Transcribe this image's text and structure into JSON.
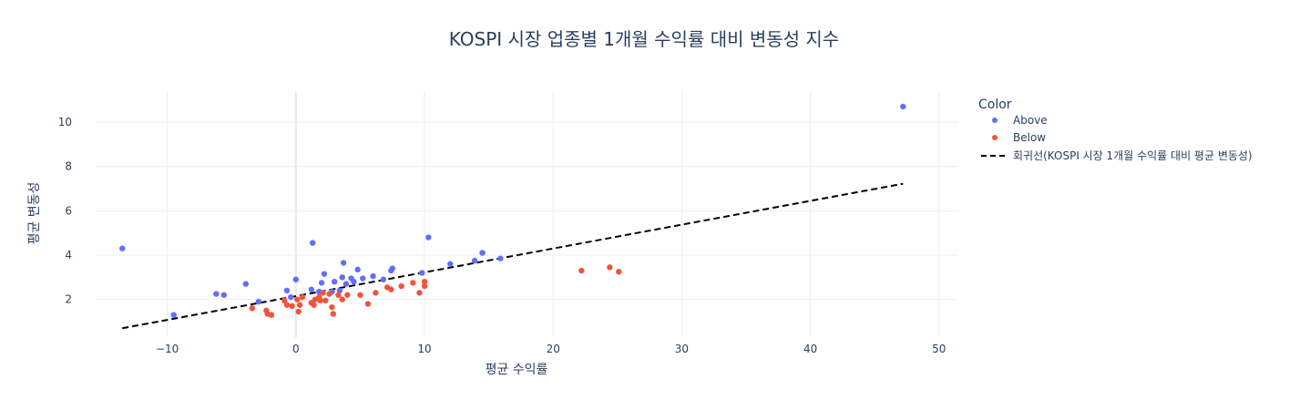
{
  "chart_data": {
    "type": "scatter",
    "title": "KOSPI 시장 업종별 1개월 수익률 대비 변동성 지수",
    "xlabel": "평균 수익률",
    "ylabel": "평균 변동성",
    "xlim": [
      -15.5,
      51.5
    ],
    "ylim": [
      0.3,
      11.4
    ],
    "xticks": [
      -10,
      0,
      10,
      20,
      30,
      40,
      50
    ],
    "xtick_labels": [
      "−10",
      "0",
      "10",
      "20",
      "30",
      "40",
      "50"
    ],
    "yticks": [
      2,
      4,
      6,
      8,
      10
    ],
    "ytick_labels": [
      "2",
      "4",
      "6",
      "8",
      "10"
    ],
    "grid": true,
    "legend": {
      "title": "Color",
      "placement": "right"
    },
    "series": [
      {
        "name": "Above",
        "color": "#636efa",
        "points": [
          [
            -13.5,
            4.3
          ],
          [
            -9.5,
            1.3
          ],
          [
            -6.2,
            2.25
          ],
          [
            -5.6,
            2.2
          ],
          [
            -3.9,
            2.7
          ],
          [
            -2.9,
            1.9
          ],
          [
            -0.7,
            2.4
          ],
          [
            -0.4,
            2.1
          ],
          [
            0.0,
            2.9
          ],
          [
            1.2,
            2.45
          ],
          [
            1.3,
            4.55
          ],
          [
            1.8,
            2.35
          ],
          [
            2.0,
            2.75
          ],
          [
            2.2,
            3.15
          ],
          [
            2.8,
            2.35
          ],
          [
            3.0,
            2.8
          ],
          [
            3.4,
            2.4
          ],
          [
            3.6,
            3.0
          ],
          [
            3.7,
            3.65
          ],
          [
            3.9,
            2.7
          ],
          [
            4.3,
            2.95
          ],
          [
            4.5,
            2.8
          ],
          [
            4.8,
            3.35
          ],
          [
            5.2,
            2.95
          ],
          [
            6.0,
            3.05
          ],
          [
            6.8,
            2.9
          ],
          [
            7.4,
            3.3
          ],
          [
            7.5,
            3.4
          ],
          [
            9.8,
            3.2
          ],
          [
            10.3,
            4.8
          ],
          [
            12.0,
            3.6
          ],
          [
            13.9,
            3.75
          ],
          [
            14.5,
            4.1
          ],
          [
            15.9,
            3.85
          ],
          [
            47.2,
            10.7
          ]
        ]
      },
      {
        "name": "Below",
        "color": "#ef553b",
        "points": [
          [
            -3.4,
            1.6
          ],
          [
            -2.3,
            1.5
          ],
          [
            -2.2,
            1.35
          ],
          [
            -1.9,
            1.3
          ],
          [
            -0.9,
            1.95
          ],
          [
            -0.7,
            1.75
          ],
          [
            -0.3,
            1.7
          ],
          [
            0.1,
            2.0
          ],
          [
            0.2,
            1.45
          ],
          [
            0.3,
            1.75
          ],
          [
            0.5,
            2.1
          ],
          [
            1.2,
            1.85
          ],
          [
            1.4,
            1.75
          ],
          [
            1.5,
            2.0
          ],
          [
            1.8,
            2.1
          ],
          [
            1.9,
            1.95
          ],
          [
            2.1,
            2.3
          ],
          [
            2.3,
            1.95
          ],
          [
            2.6,
            2.25
          ],
          [
            2.8,
            1.65
          ],
          [
            2.9,
            1.35
          ],
          [
            3.3,
            2.2
          ],
          [
            3.6,
            2.0
          ],
          [
            4.0,
            2.2
          ],
          [
            5.0,
            2.2
          ],
          [
            5.6,
            1.8
          ],
          [
            6.2,
            2.3
          ],
          [
            7.1,
            2.55
          ],
          [
            7.4,
            2.45
          ],
          [
            8.2,
            2.6
          ],
          [
            9.1,
            2.75
          ],
          [
            9.6,
            2.3
          ],
          [
            10.0,
            2.8
          ],
          [
            10.0,
            2.6
          ],
          [
            22.2,
            3.3
          ],
          [
            24.4,
            3.45
          ],
          [
            25.1,
            3.25
          ]
        ]
      },
      {
        "name": "회귀선(KOSPI 시장 1개월 수익률 대비 평균 변동성)",
        "type": "line",
        "style": "dashed",
        "color": "#000000",
        "points": [
          [
            -13.5,
            0.7
          ],
          [
            47.2,
            7.22
          ]
        ]
      }
    ]
  }
}
